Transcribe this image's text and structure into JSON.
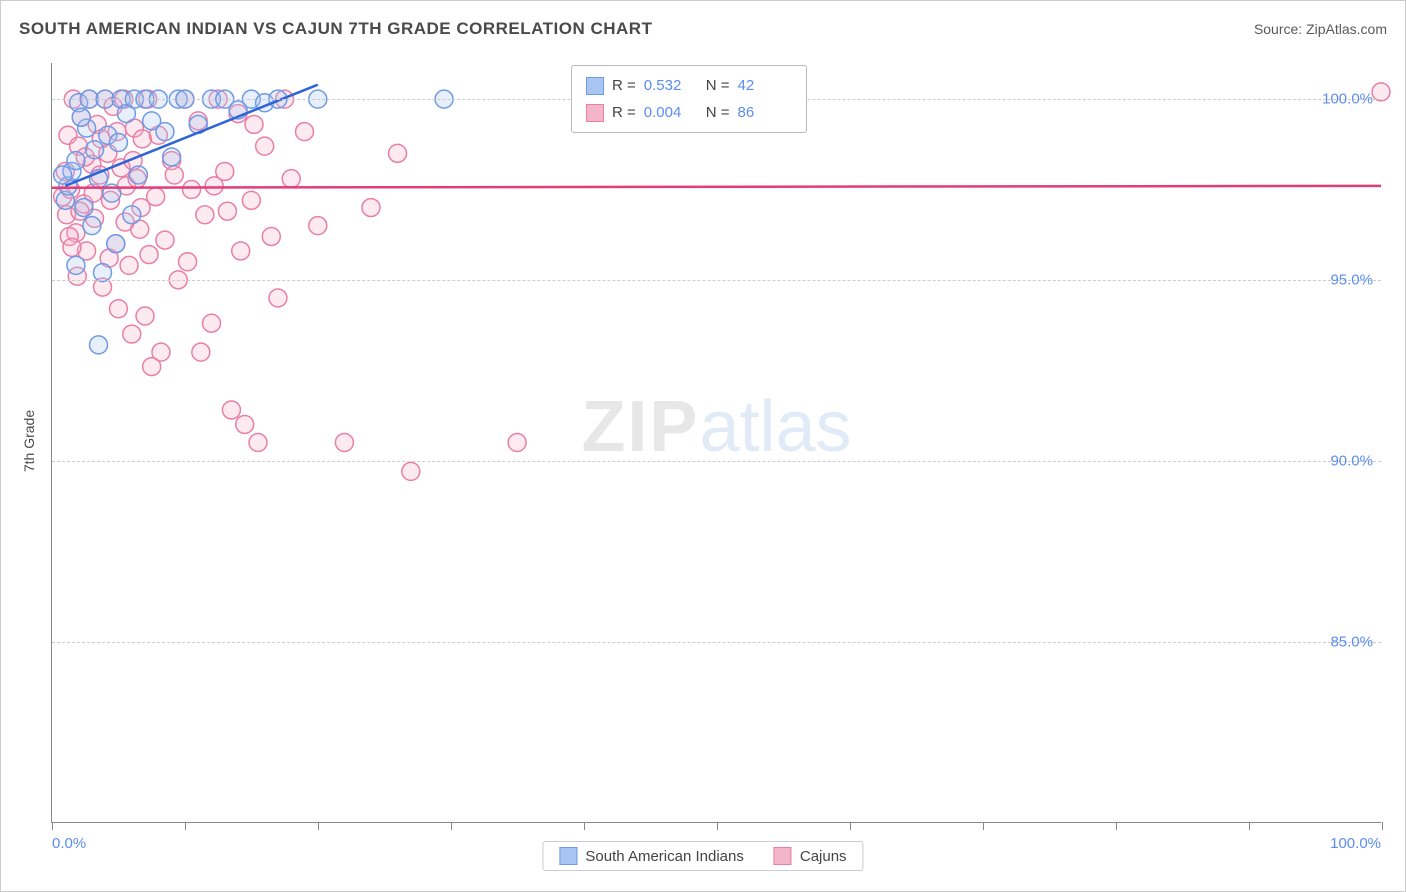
{
  "title": "SOUTH AMERICAN INDIAN VS CAJUN 7TH GRADE CORRELATION CHART",
  "source": "Source: ZipAtlas.com",
  "y_axis_label": "7th Grade",
  "watermark_a": "ZIP",
  "watermark_b": "atlas",
  "chart": {
    "type": "scatter",
    "xlim": [
      0,
      100
    ],
    "ylim": [
      80,
      101
    ],
    "x_ticks": [
      0,
      10,
      20,
      30,
      40,
      50,
      60,
      70,
      80,
      90,
      100
    ],
    "x_tick_labels": {
      "0": "0.0%",
      "100": "100.0%"
    },
    "y_ticks": [
      85,
      90,
      95,
      100
    ],
    "y_tick_labels": {
      "85": "85.0%",
      "90": "90.0%",
      "95": "95.0%",
      "100": "100.0%"
    },
    "background_color": "#ffffff",
    "grid_color": "#cccccc",
    "axis_color": "#888888",
    "tick_label_color": "#5b8def",
    "marker_radius": 9,
    "marker_stroke_width": 1.5,
    "marker_fill_opacity": 0.28,
    "series": [
      {
        "name": "South American Indians",
        "color_stroke": "#6f9ae6",
        "color_fill": "#a9c6f2",
        "trend": {
          "x1": 1,
          "y1": 97.6,
          "x2": 20,
          "y2": 100.4,
          "width": 2.5,
          "color": "#2e64d6"
        },
        "stats": {
          "R": "0.532",
          "N": "42"
        },
        "points": [
          [
            1.0,
            97.2
          ],
          [
            1.2,
            97.6
          ],
          [
            1.5,
            98.0
          ],
          [
            1.8,
            98.3
          ],
          [
            2.0,
            99.9
          ],
          [
            2.4,
            97.0
          ],
          [
            2.6,
            99.2
          ],
          [
            2.8,
            100.0
          ],
          [
            3.0,
            96.5
          ],
          [
            3.2,
            98.6
          ],
          [
            3.5,
            97.8
          ],
          [
            3.8,
            95.2
          ],
          [
            4.0,
            100.0
          ],
          [
            4.2,
            99.0
          ],
          [
            4.5,
            97.4
          ],
          [
            4.8,
            96.0
          ],
          [
            5.0,
            98.8
          ],
          [
            5.2,
            100.0
          ],
          [
            5.6,
            99.6
          ],
          [
            6.0,
            96.8
          ],
          [
            6.2,
            100.0
          ],
          [
            6.5,
            97.9
          ],
          [
            7.0,
            100.0
          ],
          [
            7.5,
            99.4
          ],
          [
            8.0,
            100.0
          ],
          [
            8.5,
            99.1
          ],
          [
            9.0,
            98.4
          ],
          [
            9.5,
            100.0
          ],
          [
            10.0,
            100.0
          ],
          [
            11.0,
            99.3
          ],
          [
            12.0,
            100.0
          ],
          [
            13.0,
            100.0
          ],
          [
            14.0,
            99.7
          ],
          [
            15.0,
            100.0
          ],
          [
            16.0,
            99.9
          ],
          [
            17.0,
            100.0
          ],
          [
            20.0,
            100.0
          ],
          [
            3.5,
            93.2
          ],
          [
            1.8,
            95.4
          ],
          [
            0.8,
            97.9
          ],
          [
            2.2,
            99.5
          ],
          [
            29.5,
            100.0
          ]
        ]
      },
      {
        "name": "Cajuns",
        "color_stroke": "#e97fa5",
        "color_fill": "#f4b4ca",
        "trend": {
          "x1": 0,
          "y1": 97.55,
          "x2": 100,
          "y2": 97.6,
          "width": 2.5,
          "color": "#e23d78"
        },
        "stats": {
          "R": "0.004",
          "N": "86"
        },
        "points": [
          [
            0.8,
            97.3
          ],
          [
            1.0,
            98.0
          ],
          [
            1.2,
            99.0
          ],
          [
            1.4,
            97.5
          ],
          [
            1.6,
            100.0
          ],
          [
            1.8,
            96.3
          ],
          [
            2.0,
            98.7
          ],
          [
            2.2,
            99.5
          ],
          [
            2.4,
            97.1
          ],
          [
            2.6,
            95.8
          ],
          [
            2.8,
            100.0
          ],
          [
            3.0,
            98.2
          ],
          [
            3.2,
            96.7
          ],
          [
            3.4,
            99.3
          ],
          [
            3.6,
            97.9
          ],
          [
            3.8,
            94.8
          ],
          [
            4.0,
            100.0
          ],
          [
            4.2,
            98.5
          ],
          [
            4.4,
            97.2
          ],
          [
            4.6,
            99.8
          ],
          [
            4.8,
            96.0
          ],
          [
            5.0,
            94.2
          ],
          [
            5.2,
            98.1
          ],
          [
            5.4,
            100.0
          ],
          [
            5.6,
            97.6
          ],
          [
            5.8,
            95.4
          ],
          [
            6.0,
            93.5
          ],
          [
            6.2,
            99.2
          ],
          [
            6.4,
            97.8
          ],
          [
            6.6,
            96.4
          ],
          [
            6.8,
            98.9
          ],
          [
            7.0,
            94.0
          ],
          [
            7.2,
            100.0
          ],
          [
            7.5,
            92.6
          ],
          [
            7.8,
            97.3
          ],
          [
            8.0,
            99.0
          ],
          [
            8.5,
            96.1
          ],
          [
            9.0,
            98.3
          ],
          [
            9.5,
            95.0
          ],
          [
            10.0,
            100.0
          ],
          [
            10.5,
            97.5
          ],
          [
            11.0,
            99.4
          ],
          [
            11.5,
            96.8
          ],
          [
            12.0,
            93.8
          ],
          [
            12.5,
            100.0
          ],
          [
            13.0,
            98.0
          ],
          [
            13.5,
            91.4
          ],
          [
            14.0,
            99.6
          ],
          [
            14.5,
            91.0
          ],
          [
            15.0,
            97.2
          ],
          [
            15.5,
            90.5
          ],
          [
            16.0,
            98.7
          ],
          [
            16.5,
            96.2
          ],
          [
            17.0,
            94.5
          ],
          [
            17.5,
            100.0
          ],
          [
            18.0,
            97.8
          ],
          [
            19.0,
            99.1
          ],
          [
            20.0,
            96.5
          ],
          [
            22.0,
            90.5
          ],
          [
            24.0,
            97.0
          ],
          [
            26.0,
            98.5
          ],
          [
            27.0,
            89.7
          ],
          [
            35.0,
            90.5
          ],
          [
            100.0,
            100.2
          ],
          [
            1.1,
            96.8
          ],
          [
            1.3,
            96.2
          ],
          [
            1.5,
            95.9
          ],
          [
            1.9,
            95.1
          ],
          [
            2.1,
            96.9
          ],
          [
            2.5,
            98.4
          ],
          [
            3.1,
            97.4
          ],
          [
            3.7,
            98.9
          ],
          [
            4.3,
            95.6
          ],
          [
            4.9,
            99.1
          ],
          [
            5.5,
            96.6
          ],
          [
            6.1,
            98.3
          ],
          [
            6.7,
            97.0
          ],
          [
            7.3,
            95.7
          ],
          [
            8.2,
            93.0
          ],
          [
            9.2,
            97.9
          ],
          [
            10.2,
            95.5
          ],
          [
            11.2,
            93.0
          ],
          [
            12.2,
            97.6
          ],
          [
            13.2,
            96.9
          ],
          [
            14.2,
            95.8
          ],
          [
            15.2,
            99.3
          ]
        ]
      }
    ]
  },
  "legend_series_labels": {
    "s1": "South American Indians",
    "s2": "Cajuns"
  }
}
